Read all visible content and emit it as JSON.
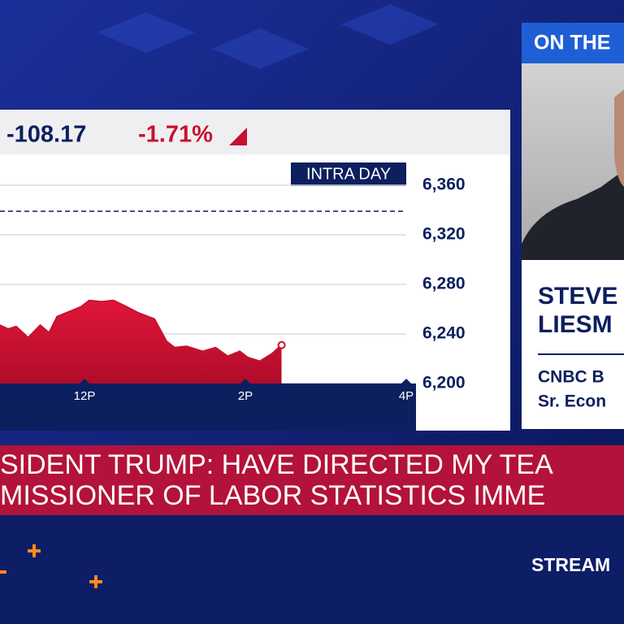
{
  "chart_data": {
    "type": "area",
    "change": -108.17,
    "change_percent": {
      "value": -1.71,
      "label": "-1.71%"
    },
    "range_label": "INTRA DAY",
    "x": [
      10.95,
      11.05,
      11.15,
      11.3,
      11.45,
      11.56,
      11.66,
      11.81,
      11.96,
      12.06,
      12.21,
      12.36,
      12.52,
      12.67,
      12.87,
      13.02,
      13.12,
      13.27,
      13.47,
      13.63,
      13.78,
      13.93,
      14.03,
      14.18,
      14.33,
      14.45
    ],
    "values": [
      6247,
      6244,
      6246,
      6237,
      6247,
      6241,
      6254,
      6258,
      6262,
      6267,
      6266,
      6267,
      6262,
      6257,
      6252,
      6234,
      6229,
      6230,
      6226,
      6229,
      6222,
      6226,
      6221,
      6218,
      6224,
      6231
    ],
    "color": "#c8102e",
    "reference_line": 6339,
    "xlim": [
      9.5,
      16
    ],
    "xticks": [
      {
        "value": 12,
        "label": "12P"
      },
      {
        "value": 14,
        "label": "2P"
      },
      {
        "value": 16,
        "label": "4P"
      }
    ],
    "ylim": [
      6200,
      6380
    ],
    "yticks": [
      {
        "value": 6200,
        "label": "6,200"
      },
      {
        "value": 6240,
        "label": "6,240"
      },
      {
        "value": 6280,
        "label": "6,280"
      },
      {
        "value": 6320,
        "label": "6,320"
      },
      {
        "value": 6360,
        "label": "6,360"
      }
    ],
    "grid": true
  },
  "header": {
    "label": "ON THE"
  },
  "guest": {
    "name_lines": [
      "STEVE",
      "LIESM"
    ],
    "title_lines": [
      "CNBC B",
      "Sr. Econ"
    ]
  },
  "ticker": {
    "lines": [
      "SIDENT TRUMP: HAVE DIRECTED MY TEA",
      "MISSIONER OF LABOR STATISTICS IMME"
    ]
  },
  "footer": {
    "label": "STREAM"
  }
}
